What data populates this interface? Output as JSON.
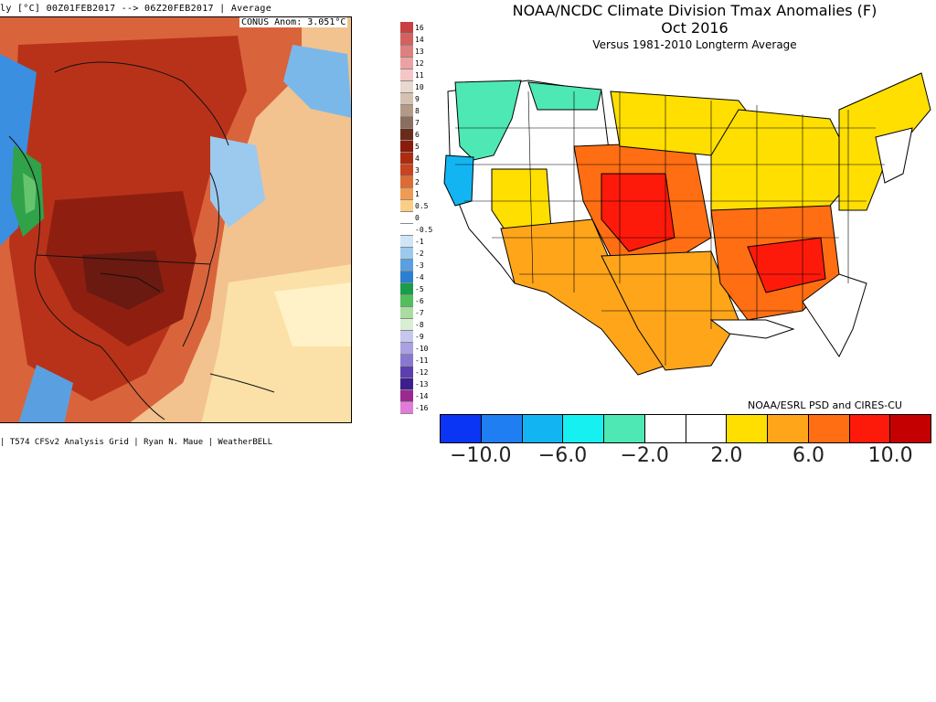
{
  "left_map": {
    "title": "ly   [°C] 00Z01FEB2017 --> 06Z20FEB2017 | Average",
    "anomaly_text": "CONUS Anom: 3.051°C",
    "credit": "| T574 CFSv2 Analysis Grid | Ryan N. Maue | WeatherBELL",
    "colorbar": {
      "labels": [
        "16",
        "14",
        "13",
        "12",
        "11",
        "10",
        "9",
        "8",
        "7",
        "6",
        "5",
        "4",
        "3",
        "2",
        "1",
        "0.5",
        "0",
        "-0.5",
        "-1",
        "-2",
        "-3",
        "-4",
        "-5",
        "-6",
        "-7",
        "-8",
        "-9",
        "-10",
        "-11",
        "-12",
        "-13",
        "-14",
        "-16"
      ],
      "colors": [
        "#c84040",
        "#d46060",
        "#e07f7f",
        "#eca2a2",
        "#f5c6c6",
        "#e9d8cf",
        "#d5c1b1",
        "#b39a88",
        "#8a6f5e",
        "#6a2b1a",
        "#8c1a0a",
        "#ad2b0f",
        "#c9431e",
        "#dd6b33",
        "#f09a52",
        "#fbce86",
        "#ffffff",
        "#ffffff",
        "#cfe6f6",
        "#9cc9ee",
        "#5aa0e0",
        "#2c7fd0",
        "#1a9d4a",
        "#52be5c",
        "#a9dca0",
        "#d9eed3",
        "#c7c6ee",
        "#a9a1e0",
        "#8878cf",
        "#5b3fae",
        "#3c1f8c",
        "#9a2a8f",
        "#e27bd8"
      ]
    }
  },
  "right_map": {
    "title": "NOAA/NCDC Climate Division Tmax Anomalies (F)",
    "period": "Oct 2016",
    "subtitle": "Versus 1981-2010 Longterm Average",
    "credit": "NOAA/ESRL PSD and CIRES-CU",
    "legend": {
      "colors": [
        "#0a35f5",
        "#1e7ef2",
        "#12b5f2",
        "#17f0f0",
        "#4de8b4",
        "#ffffff",
        "#ffffff",
        "#ffdf00",
        "#ffa51a",
        "#ff6e12",
        "#fe1a0a",
        "#c40000"
      ],
      "ticks": [
        {
          "label": "−10.0",
          "value": -10
        },
        {
          "label": "−6.0",
          "value": -6
        },
        {
          "label": "−2.0",
          "value": -2
        },
        {
          "label": "2.0",
          "value": 2
        },
        {
          "label": "6.0",
          "value": 6
        },
        {
          "label": "10.0",
          "value": 10
        }
      ],
      "range": [
        -12,
        12
      ]
    }
  }
}
